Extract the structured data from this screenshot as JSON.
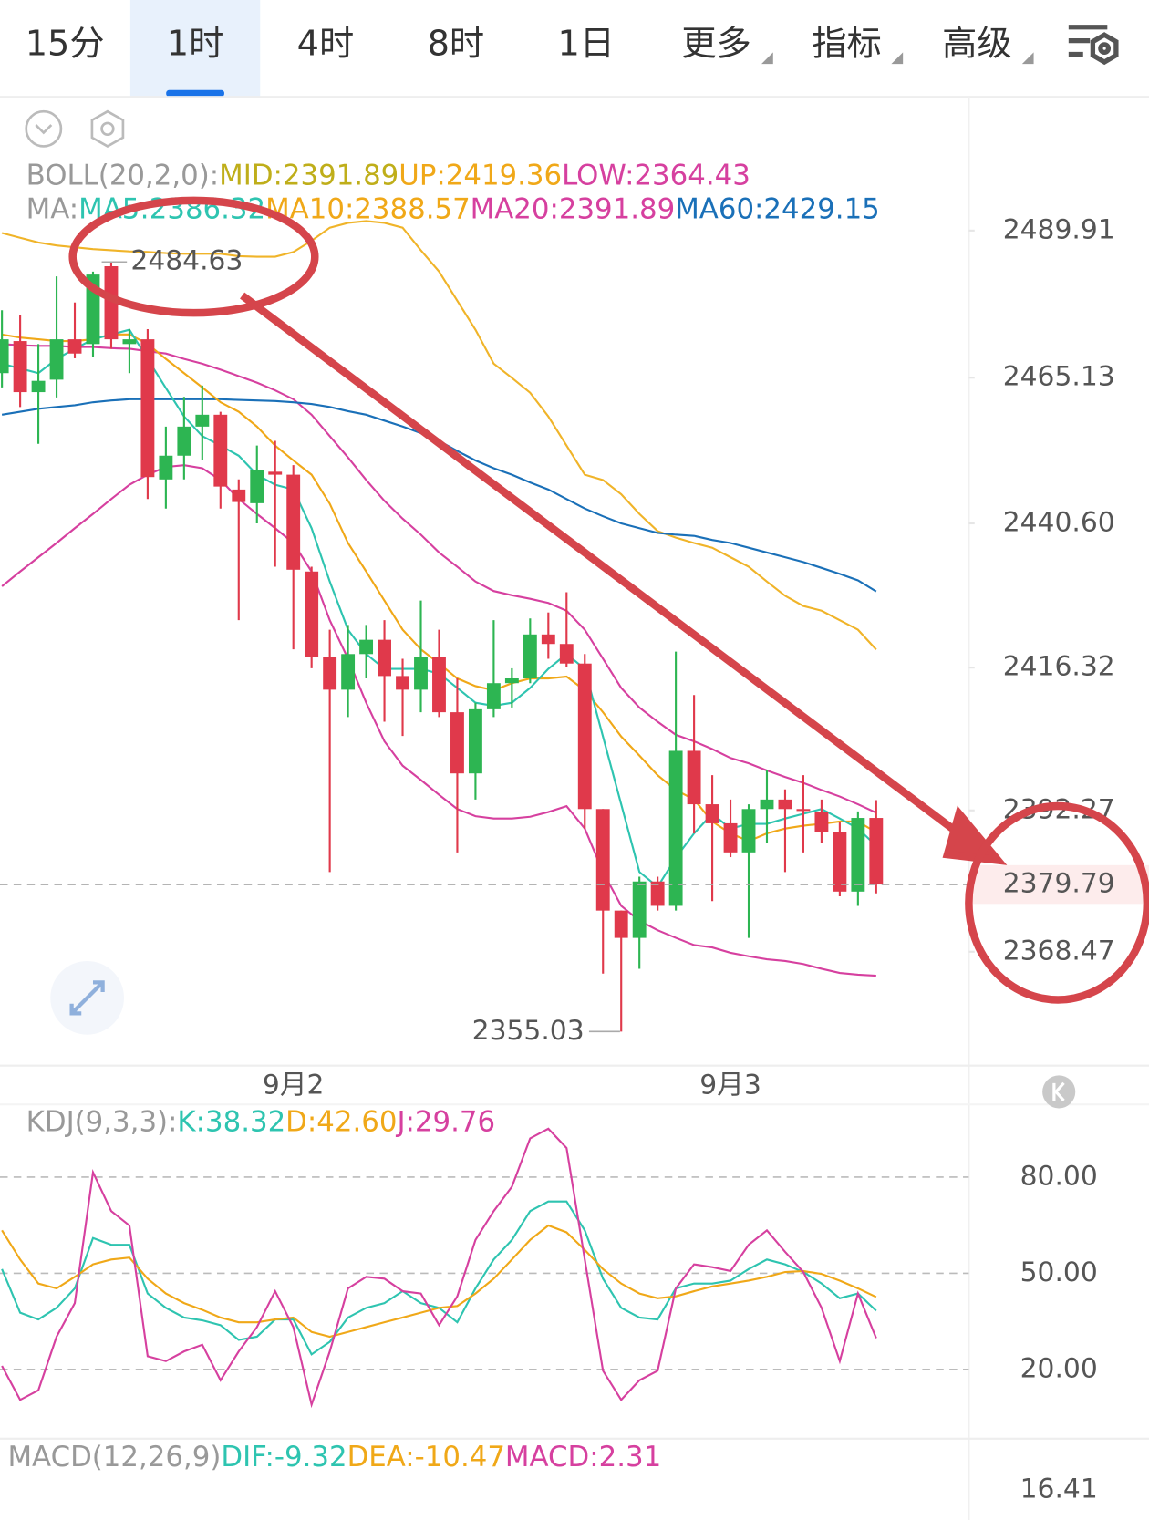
{
  "tabs": {
    "items": [
      "15分",
      "1时",
      "4时",
      "8时",
      "1日",
      "更多",
      "指标",
      "高级"
    ],
    "active": 1
  },
  "chart_data": [
    {
      "type": "candlestick",
      "legend_rows": [
        [
          {
            "text": "BOLL(20,2,0):",
            "color": "#999999"
          },
          {
            "text": "MID:2391.89",
            "color": "#bfae1a"
          },
          {
            "text": "UP:2419.36",
            "color": "#f0a818"
          },
          {
            "text": "LOW:2364.43",
            "color": "#d6409f"
          }
        ],
        [
          {
            "text": "MA:",
            "color": "#999999"
          },
          {
            "text": "MA5:2386.32",
            "color": "#2ec4b0"
          },
          {
            "text": "MA10:2388.57",
            "color": "#f0a818"
          },
          {
            "text": "MA20:2391.89",
            "color": "#d6409f"
          },
          {
            "text": "MA60:2429.15",
            "color": "#1a70b8"
          }
        ]
      ],
      "categories": [
        null,
        null,
        null,
        null,
        null,
        null,
        null,
        null,
        null,
        null,
        null,
        null,
        null,
        null,
        null,
        null,
        "9月2",
        null,
        null,
        null,
        null,
        null,
        null,
        null,
        null,
        null,
        null,
        null,
        null,
        null,
        null,
        null,
        null,
        null,
        null,
        null,
        null,
        null,
        null,
        null,
        "9月3",
        null,
        null,
        null,
        null,
        null,
        null,
        null,
        null
      ],
      "ohlc": [
        [
          2465.9,
          2476.5,
          2463.5,
          2471.6
        ],
        [
          2471.3,
          2475.7,
          2460.2,
          2462.7
        ],
        [
          2462.7,
          2470.8,
          2454.0,
          2464.6
        ],
        [
          2464.8,
          2482.2,
          2461.8,
          2471.6
        ],
        [
          2471.6,
          2477.8,
          2468.4,
          2469.2
        ],
        [
          2470.8,
          2483.0,
          2468.7,
          2482.5
        ],
        [
          2483.9,
          2484.63,
          2470.0,
          2471.6
        ],
        [
          2470.8,
          2473.3,
          2465.9,
          2471.6
        ],
        [
          2471.6,
          2473.3,
          2444.7,
          2448.4
        ],
        [
          2448.0,
          2456.9,
          2443.1,
          2452.0
        ],
        [
          2452.0,
          2461.9,
          2448.0,
          2456.9
        ],
        [
          2456.9,
          2463.8,
          2451.2,
          2458.9
        ],
        [
          2458.9,
          2459.4,
          2443.1,
          2446.8
        ],
        [
          2446.3,
          2448.0,
          2424.3,
          2444.2
        ],
        [
          2444.0,
          2453.7,
          2440.6,
          2449.6
        ],
        [
          2449.3,
          2454.5,
          2433.3,
          2448.8
        ],
        [
          2448.8,
          2450.4,
          2419.4,
          2432.8
        ],
        [
          2432.5,
          2433.3,
          2416.2,
          2418.1
        ],
        [
          2418.1,
          2422.7,
          2381.9,
          2412.6
        ],
        [
          2412.6,
          2423.5,
          2408.0,
          2418.6
        ],
        [
          2418.6,
          2423.5,
          2414.5,
          2421.0
        ],
        [
          2421.0,
          2424.3,
          2407.2,
          2414.9
        ],
        [
          2414.9,
          2417.8,
          2404.8,
          2412.6
        ],
        [
          2412.6,
          2427.6,
          2408.8,
          2418.1
        ],
        [
          2418.1,
          2422.7,
          2408.0,
          2408.8
        ],
        [
          2408.8,
          2414.5,
          2385.2,
          2398.5
        ],
        [
          2398.5,
          2410.4,
          2394.1,
          2409.3
        ],
        [
          2409.3,
          2424.3,
          2408.0,
          2413.7
        ],
        [
          2413.7,
          2416.2,
          2409.6,
          2414.5
        ],
        [
          2414.5,
          2424.6,
          2413.7,
          2421.9
        ],
        [
          2421.9,
          2425.6,
          2417.8,
          2420.3
        ],
        [
          2420.3,
          2429.0,
          2416.5,
          2417.0
        ],
        [
          2417.0,
          2418.6,
          2389.2,
          2392.5
        ],
        [
          2392.5,
          2392.5,
          2364.8,
          2375.4
        ],
        [
          2375.4,
          2375.4,
          2355.03,
          2370.8
        ],
        [
          2370.8,
          2381.1,
          2365.6,
          2380.3
        ],
        [
          2380.3,
          2381.1,
          2375.4,
          2376.2
        ],
        [
          2376.2,
          2419.0,
          2375.4,
          2402.3
        ],
        [
          2402.3,
          2411.7,
          2388.4,
          2393.3
        ],
        [
          2393.3,
          2398.2,
          2377.0,
          2390.1
        ],
        [
          2390.1,
          2394.1,
          2384.4,
          2385.2
        ],
        [
          2385.2,
          2393.3,
          2370.8,
          2392.5
        ],
        [
          2392.5,
          2399.0,
          2386.8,
          2394.1
        ],
        [
          2394.1,
          2395.8,
          2381.9,
          2392.5
        ],
        [
          2392.5,
          2398.2,
          2385.2,
          2392.3
        ],
        [
          2392.0,
          2394.1,
          2386.8,
          2388.7
        ],
        [
          2388.7,
          2390.4,
          2377.8,
          2378.6
        ],
        [
          2378.6,
          2392.1,
          2376.2,
          2391.0
        ],
        [
          2391.0,
          2394.0,
          2378.3,
          2379.79
        ]
      ],
      "up_color": "#2db552",
      "down_color": "#e0394b",
      "series": [
        {
          "color": "#f0b429",
          "values": [
            2489.5,
            2488.7,
            2487.9,
            2487.4,
            2487.1,
            2486.8,
            2486.6,
            2486.4,
            2486.3,
            2486.1,
            2486.0,
            2486.0,
            2486.0,
            2485.6,
            2485.5,
            2485.5,
            2486.3,
            2488.2,
            2490.4,
            2491.2,
            2491.5,
            2491.2,
            2490.4,
            2486.6,
            2483.0,
            2478.1,
            2473.2,
            2467.5,
            2465.1,
            2462.6,
            2458.6,
            2453.7,
            2448.8,
            2447.9,
            2445.5,
            2442.2,
            2439.3,
            2438.2,
            2437.3,
            2436.5,
            2434.9,
            2433.3,
            2430.8,
            2428.4,
            2426.7,
            2425.9,
            2424.3,
            2422.7,
            2419.36
          ]
        },
        {
          "color": "#d6409f",
          "values": [
            2470.8,
            2470.6,
            2470.5,
            2470.5,
            2470.3,
            2470.3,
            2470.1,
            2470.0,
            2469.6,
            2469.2,
            2468.3,
            2467.5,
            2466.5,
            2465.4,
            2464.3,
            2463.0,
            2461.5,
            2458.9,
            2455.3,
            2451.7,
            2447.9,
            2444.4,
            2441.4,
            2438.7,
            2435.7,
            2433.3,
            2430.8,
            2429.2,
            2428.5,
            2427.9,
            2427.2,
            2425.9,
            2422.7,
            2417.8,
            2412.9,
            2409.6,
            2407.2,
            2405.0,
            2403.9,
            2402.6,
            2401.1,
            2400.2,
            2399.0,
            2397.9,
            2396.9,
            2395.7,
            2394.6,
            2393.3,
            2391.89
          ]
        },
        {
          "color": "#d6409f",
          "values": [
            2430.0,
            2432.5,
            2434.9,
            2437.3,
            2439.8,
            2442.2,
            2444.7,
            2447.1,
            2448.8,
            2450.1,
            2450.4,
            2449.9,
            2447.9,
            2444.7,
            2442.2,
            2439.8,
            2437.3,
            2432.5,
            2424.3,
            2417.8,
            2410.4,
            2403.9,
            2399.8,
            2397.4,
            2394.9,
            2392.5,
            2391.3,
            2390.9,
            2390.9,
            2391.2,
            2392.0,
            2393.0,
            2389.2,
            2381.9,
            2376.2,
            2373.7,
            2372.1,
            2370.8,
            2369.6,
            2369.2,
            2368.3,
            2367.7,
            2367.2,
            2366.9,
            2366.4,
            2365.6,
            2364.9,
            2364.6,
            2364.43
          ]
        },
        {
          "color": "#1a70b8",
          "values": [
            2458.9,
            2459.4,
            2459.9,
            2460.2,
            2460.5,
            2461.0,
            2461.3,
            2461.5,
            2461.5,
            2461.5,
            2461.5,
            2461.5,
            2461.5,
            2461.4,
            2461.3,
            2461.2,
            2461.0,
            2460.7,
            2460.2,
            2459.5,
            2458.9,
            2457.9,
            2456.9,
            2455.8,
            2454.5,
            2452.8,
            2451.2,
            2449.9,
            2448.8,
            2447.5,
            2446.3,
            2444.7,
            2443.1,
            2441.8,
            2440.6,
            2439.8,
            2439.0,
            2438.7,
            2438.5,
            2437.8,
            2437.3,
            2436.5,
            2435.7,
            2434.9,
            2434.1,
            2433.1,
            2432.1,
            2431.0,
            2429.15
          ]
        },
        {
          "color": "#f0a818",
          "values": [
            2472.4,
            2471.9,
            2471.6,
            2471.3,
            2471.3,
            2471.6,
            2472.4,
            2472.4,
            2470.8,
            2468.3,
            2465.9,
            2463.5,
            2461.0,
            2459.4,
            2456.9,
            2453.7,
            2451.2,
            2448.8,
            2443.9,
            2437.3,
            2432.5,
            2427.6,
            2422.7,
            2419.4,
            2417.0,
            2414.5,
            2413.2,
            2412.5,
            2413.7,
            2414.5,
            2414.5,
            2414.8,
            2412.5,
            2408.8,
            2404.7,
            2401.5,
            2398.2,
            2395.7,
            2394.1,
            2390.4,
            2388.4,
            2387.1,
            2388.4,
            2389.2,
            2389.7,
            2390.0,
            2390.4,
            2390.4,
            2388.57
          ]
        },
        {
          "color": "#2ec4b0",
          "values": [
            2467.5,
            2466.7,
            2465.9,
            2468.3,
            2470.0,
            2471.6,
            2472.4,
            2473.2,
            2468.3,
            2463.4,
            2458.6,
            2455.3,
            2453.7,
            2452.0,
            2448.8,
            2447.1,
            2446.3,
            2439.8,
            2430.8,
            2422.7,
            2418.6,
            2416.1,
            2416.1,
            2416.1,
            2415.3,
            2412.9,
            2410.4,
            2409.9,
            2410.4,
            2412.9,
            2416.1,
            2418.6,
            2416.1,
            2404.7,
            2393.3,
            2381.9,
            2379.4,
            2384.3,
            2388.4,
            2391.7,
            2389.2,
            2390.0,
            2390.0,
            2390.9,
            2391.7,
            2392.5,
            2390.9,
            2389.2,
            2386.32
          ]
        }
      ],
      "ylim": [
        2349.29,
        2512.42
      ],
      "yticks": [
        {
          "value": 2489.91,
          "label": "2489.91"
        },
        {
          "value": 2465.13,
          "label": "2465.13"
        },
        {
          "value": 2440.6,
          "label": "2440.60"
        },
        {
          "value": 2416.32,
          "label": "2416.32"
        },
        {
          "value": 2392.27,
          "label": "2392.27"
        },
        {
          "value": 2368.47,
          "label": "2368.47"
        }
      ],
      "high_label": 2484.63,
      "low_label": 2355.03,
      "last_price": 2379.79
    },
    {
      "type": "line",
      "legend_rows": [
        [
          {
            "text": "KDJ(9,3,3):",
            "color": "#999999"
          },
          {
            "text": "K:38.32",
            "color": "#2ec4b0"
          },
          {
            "text": "D:42.60",
            "color": "#f0a818"
          },
          {
            "text": "J:29.76",
            "color": "#d6409f"
          }
        ]
      ],
      "series": [
        {
          "color": "#2ec4b0",
          "values": [
            51.3,
            37.7,
            35.6,
            39.2,
            45.3,
            61.0,
            58.9,
            58.9,
            43.7,
            39.2,
            36.2,
            35.3,
            33.8,
            29.2,
            30.2,
            35.6,
            35.6,
            24.7,
            28.6,
            36.2,
            39.2,
            40.7,
            44.4,
            40.7,
            39.2,
            34.7,
            45.3,
            54.3,
            60.4,
            69.4,
            72.4,
            72.4,
            63.4,
            48.3,
            39.2,
            36.2,
            35.6,
            45.3,
            46.8,
            46.8,
            47.7,
            51.3,
            54.3,
            52.8,
            50.4,
            46.8,
            42.2,
            43.7,
            38.32
          ]
        },
        {
          "color": "#f0a818",
          "values": [
            63.4,
            54.3,
            46.8,
            45.3,
            48.9,
            52.8,
            54.3,
            54.9,
            48.3,
            43.7,
            40.7,
            38.6,
            36.2,
            34.7,
            34.7,
            35.6,
            36.2,
            31.7,
            30.2,
            31.7,
            33.2,
            34.7,
            36.2,
            37.7,
            39.2,
            39.8,
            43.7,
            48.3,
            54.3,
            60.4,
            64.9,
            62.8,
            57.3,
            51.3,
            46.8,
            43.7,
            42.2,
            42.8,
            44.4,
            45.9,
            46.8,
            47.7,
            48.9,
            50.4,
            50.7,
            49.8,
            47.7,
            45.3,
            42.6
          ]
        },
        {
          "color": "#d6409f",
          "values": [
            21.1,
            10.5,
            13.5,
            30.2,
            40.7,
            81.5,
            69.4,
            64.9,
            24.1,
            22.6,
            25.6,
            27.7,
            16.6,
            25.6,
            33.2,
            44.4,
            33.2,
            9.0,
            25.6,
            45.3,
            48.9,
            48.3,
            44.4,
            43.7,
            33.8,
            42.8,
            60.4,
            69.4,
            77.0,
            92.1,
            95.1,
            89.1,
            54.3,
            19.6,
            10.5,
            16.6,
            19.6,
            45.3,
            52.8,
            51.9,
            50.7,
            58.9,
            63.4,
            56.7,
            50.4,
            39.2,
            22.6,
            43.7,
            29.76
          ]
        }
      ],
      "ylim": [
        -1.6,
        102.7
      ],
      "yticks": [
        {
          "value": 80,
          "label": "80.00"
        },
        {
          "value": 50,
          "label": "50.00"
        },
        {
          "value": 20,
          "label": "20.00"
        }
      ],
      "grid": true
    }
  ],
  "macd": {
    "legend": [
      {
        "text": "MACD(12,26,9)",
        "color": "#999999"
      },
      {
        "text": "DIF:-9.32",
        "color": "#2ec4b0"
      },
      {
        "text": "DEA:-10.47",
        "color": "#f0a818"
      },
      {
        "text": "MACD:2.31",
        "color": "#d6409f"
      }
    ],
    "yticks": [
      16.41
    ]
  }
}
